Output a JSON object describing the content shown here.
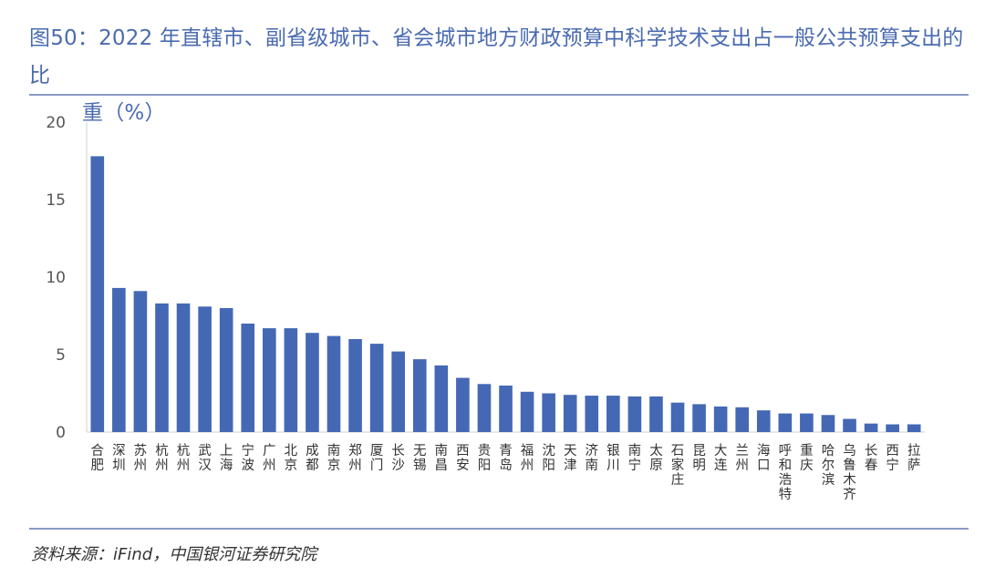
{
  "chart_data": {
    "type": "bar",
    "title": "图50：2022 年直辖市、副省级城市、省会城市地方财政预算中科学技术支出占一般公共预算支出的比重（%）",
    "title_line1": "图50：2022 年直辖市、副省级城市、省会城市地方财政预算中科学技术支出占一般公共预算支出的比",
    "title_line2": "重（%）",
    "source": "资料来源：iFind，中国银河证券研究院",
    "xlabel": "",
    "ylabel": "",
    "ylim": [
      0,
      20
    ],
    "yticks": [
      "0",
      "5",
      "10",
      "15",
      "20"
    ],
    "grid": false,
    "legend": "none",
    "bar_color": "#4468b4",
    "categories": [
      "合肥",
      "深圳",
      "苏州",
      "杭州",
      "杭州",
      "武汉",
      "上海",
      "宁波",
      "广州",
      "北京",
      "成都",
      "南京",
      "郑州",
      "厦门",
      "长沙",
      "无锡",
      "南昌",
      "西安",
      "贵阳",
      "青岛",
      "福州",
      "沈阳",
      "天津",
      "济南",
      "银川",
      "南宁",
      "太原",
      "石家庄",
      "昆明",
      "大连",
      "兰州",
      "海口",
      "呼和浩特",
      "重庆",
      "哈尔滨",
      "乌鲁木齐",
      "长春",
      "西宁",
      "拉萨"
    ],
    "values": [
      17.8,
      9.3,
      9.1,
      8.3,
      8.3,
      8.1,
      8.0,
      7.0,
      6.7,
      6.7,
      6.4,
      6.2,
      6.0,
      5.7,
      5.2,
      4.7,
      4.3,
      3.5,
      3.1,
      3.0,
      2.6,
      2.5,
      2.4,
      2.35,
      2.35,
      2.3,
      2.3,
      1.9,
      1.8,
      1.65,
      1.6,
      1.4,
      1.2,
      1.2,
      1.1,
      0.85,
      0.55,
      0.5,
      0.5
    ]
  }
}
